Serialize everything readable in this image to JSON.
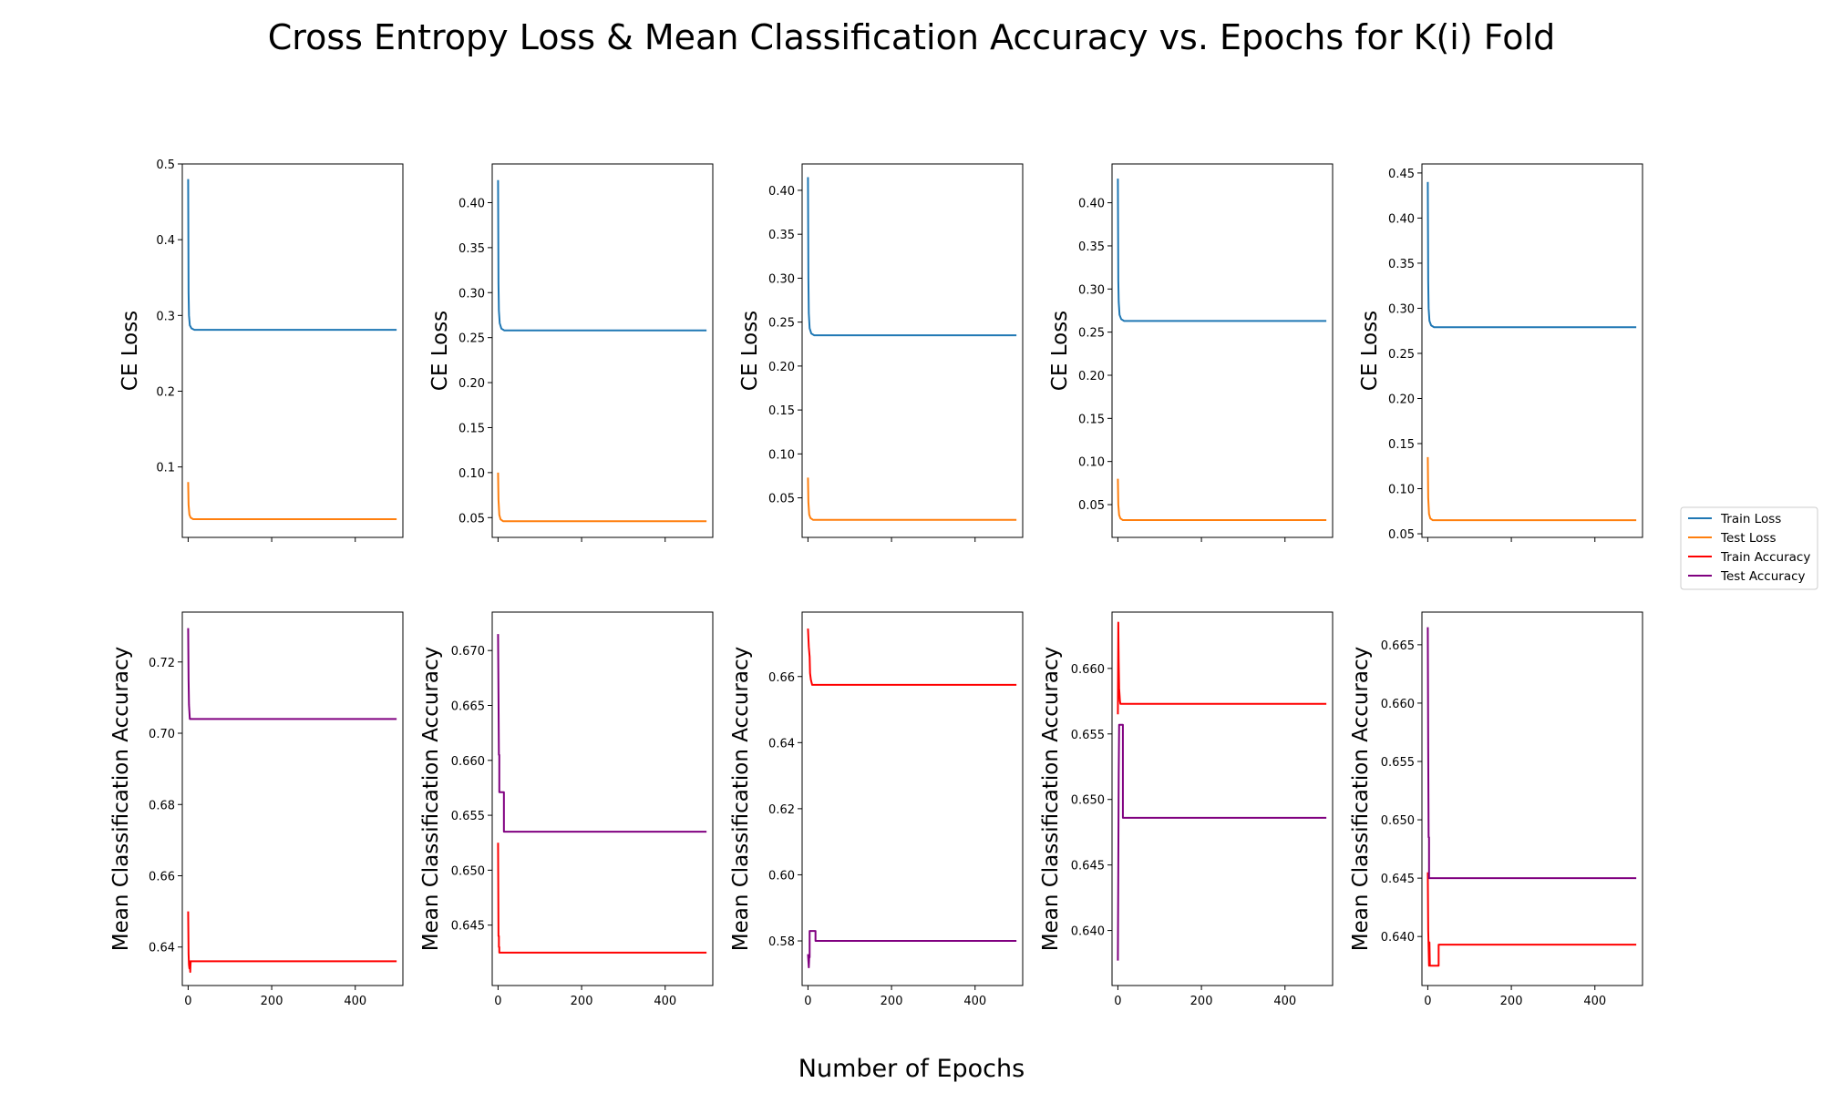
{
  "figure": {
    "title": "Cross Entropy Loss & Mean Classification Accuracy vs. Epochs for K(i) Fold",
    "xlabel": "Number of Epochs",
    "legend": [
      {
        "label": "Train Loss",
        "color": "#1f77b4"
      },
      {
        "label": "Test Loss",
        "color": "#ff7f0e"
      },
      {
        "label": "Train Accuracy",
        "color": "#ff0000"
      },
      {
        "label": "Test Accuracy",
        "color": "#800080"
      }
    ]
  },
  "chart_data": [
    {
      "type": "line",
      "fold": 1,
      "metric": "loss",
      "ylabel": "CE Loss",
      "xlim": [
        -14,
        514
      ],
      "ylim": [
        0.007,
        0.5
      ],
      "xticks": [
        0,
        200,
        400
      ],
      "yticks": [
        0.1,
        0.2,
        0.3,
        0.4,
        0.5
      ],
      "ytick_labels": [
        "0.1",
        "0.2",
        "0.3",
        "0.4",
        "0.5"
      ],
      "show_xtick_labels": false,
      "series": [
        {
          "name": "Train Loss",
          "color": "#1f77b4",
          "points": [
            [
              0,
              0.48
            ],
            [
              1,
              0.33
            ],
            [
              2,
              0.3
            ],
            [
              4,
              0.287
            ],
            [
              8,
              0.283
            ],
            [
              15,
              0.281
            ],
            [
              499,
              0.281
            ]
          ]
        },
        {
          "name": "Test Loss",
          "color": "#ff7f0e",
          "points": [
            [
              0,
              0.08
            ],
            [
              1,
              0.05
            ],
            [
              3,
              0.037
            ],
            [
              6,
              0.033
            ],
            [
              12,
              0.031
            ],
            [
              499,
              0.031
            ]
          ]
        }
      ]
    },
    {
      "type": "line",
      "fold": 2,
      "metric": "loss",
      "ylabel": "CE Loss",
      "xlim": [
        -14,
        514
      ],
      "ylim": [
        0.028,
        0.443
      ],
      "xticks": [
        0,
        200,
        400
      ],
      "yticks": [
        0.05,
        0.1,
        0.15,
        0.2,
        0.25,
        0.3,
        0.35,
        0.4
      ],
      "ytick_labels": [
        "0.05",
        "0.10",
        "0.15",
        "0.20",
        "0.25",
        "0.30",
        "0.35",
        "0.40"
      ],
      "show_xtick_labels": false,
      "series": [
        {
          "name": "Train Loss",
          "color": "#1f77b4",
          "points": [
            [
              0,
              0.425
            ],
            [
              1,
              0.31
            ],
            [
              2,
              0.28
            ],
            [
              4,
              0.266
            ],
            [
              8,
              0.26
            ],
            [
              15,
              0.258
            ],
            [
              499,
              0.258
            ]
          ]
        },
        {
          "name": "Test Loss",
          "color": "#ff7f0e",
          "points": [
            [
              0,
              0.1
            ],
            [
              1,
              0.07
            ],
            [
              3,
              0.053
            ],
            [
              6,
              0.048
            ],
            [
              12,
              0.046
            ],
            [
              499,
              0.046
            ]
          ]
        }
      ]
    },
    {
      "type": "line",
      "fold": 3,
      "metric": "loss",
      "ylabel": "CE Loss",
      "xlim": [
        -14,
        514
      ],
      "ylim": [
        0.005,
        0.43
      ],
      "xticks": [
        0,
        200,
        400
      ],
      "yticks": [
        0.05,
        0.1,
        0.15,
        0.2,
        0.25,
        0.3,
        0.35,
        0.4
      ],
      "ytick_labels": [
        "0.05",
        "0.10",
        "0.15",
        "0.20",
        "0.25",
        "0.30",
        "0.35",
        "0.40"
      ],
      "show_xtick_labels": false,
      "series": [
        {
          "name": "Train Loss",
          "color": "#1f77b4",
          "points": [
            [
              0,
              0.415
            ],
            [
              1,
              0.3
            ],
            [
              2,
              0.26
            ],
            [
              4,
              0.243
            ],
            [
              8,
              0.237
            ],
            [
              15,
              0.235
            ],
            [
              499,
              0.235
            ]
          ]
        },
        {
          "name": "Test Loss",
          "color": "#ff7f0e",
          "points": [
            [
              0,
              0.073
            ],
            [
              1,
              0.045
            ],
            [
              3,
              0.031
            ],
            [
              6,
              0.027
            ],
            [
              12,
              0.025
            ],
            [
              499,
              0.025
            ]
          ]
        }
      ]
    },
    {
      "type": "line",
      "fold": 4,
      "metric": "loss",
      "ylabel": "CE Loss",
      "xlim": [
        -14,
        514
      ],
      "ylim": [
        0.012,
        0.445
      ],
      "xticks": [
        0,
        200,
        400
      ],
      "yticks": [
        0.05,
        0.1,
        0.15,
        0.2,
        0.25,
        0.3,
        0.35,
        0.4
      ],
      "ytick_labels": [
        "0.05",
        "0.10",
        "0.15",
        "0.20",
        "0.25",
        "0.30",
        "0.35",
        "0.40"
      ],
      "show_xtick_labels": false,
      "series": [
        {
          "name": "Train Loss",
          "color": "#1f77b4",
          "points": [
            [
              0,
              0.428
            ],
            [
              1,
              0.31
            ],
            [
              2,
              0.285
            ],
            [
              4,
              0.27
            ],
            [
              8,
              0.265
            ],
            [
              15,
              0.263
            ],
            [
              499,
              0.263
            ]
          ]
        },
        {
          "name": "Test Loss",
          "color": "#ff7f0e",
          "points": [
            [
              0,
              0.08
            ],
            [
              1,
              0.05
            ],
            [
              3,
              0.038
            ],
            [
              6,
              0.034
            ],
            [
              12,
              0.032
            ],
            [
              499,
              0.032
            ]
          ]
        }
      ]
    },
    {
      "type": "line",
      "fold": 5,
      "metric": "loss",
      "ylabel": "CE Loss",
      "xlim": [
        -14,
        514
      ],
      "ylim": [
        0.046,
        0.46
      ],
      "xticks": [
        0,
        200,
        400
      ],
      "yticks": [
        0.05,
        0.1,
        0.15,
        0.2,
        0.25,
        0.3,
        0.35,
        0.4,
        0.45
      ],
      "ytick_labels": [
        "0.05",
        "0.10",
        "0.15",
        "0.20",
        "0.25",
        "0.30",
        "0.35",
        "0.40",
        "0.45"
      ],
      "show_xtick_labels": false,
      "series": [
        {
          "name": "Train Loss",
          "color": "#1f77b4",
          "points": [
            [
              0,
              0.44
            ],
            [
              1,
              0.33
            ],
            [
              2,
              0.3
            ],
            [
              4,
              0.286
            ],
            [
              8,
              0.281
            ],
            [
              15,
              0.279
            ],
            [
              499,
              0.279
            ]
          ]
        },
        {
          "name": "Test Loss",
          "color": "#ff7f0e",
          "points": [
            [
              0,
              0.135
            ],
            [
              1,
              0.09
            ],
            [
              3,
              0.072
            ],
            [
              6,
              0.067
            ],
            [
              12,
              0.065
            ],
            [
              499,
              0.065
            ]
          ]
        }
      ]
    },
    {
      "type": "line",
      "fold": 1,
      "metric": "accuracy",
      "ylabel": "Mean Classification Accuracy",
      "xlim": [
        -14,
        514
      ],
      "ylim": [
        0.6292,
        0.734
      ],
      "xticks": [
        0,
        200,
        400
      ],
      "xtick_labels": [
        "0",
        "200",
        "400"
      ],
      "yticks": [
        0.64,
        0.66,
        0.68,
        0.7,
        0.72
      ],
      "ytick_labels": [
        "0.64",
        "0.66",
        "0.68",
        "0.70",
        "0.72"
      ],
      "show_xtick_labels": true,
      "series": [
        {
          "name": "Train Accuracy",
          "color": "#ff0000",
          "points": [
            [
              0,
              0.65
            ],
            [
              1,
              0.638
            ],
            [
              2,
              0.635
            ],
            [
              3,
              0.634
            ],
            [
              4,
              0.636
            ],
            [
              5,
              0.633
            ],
            [
              6,
              0.636
            ],
            [
              499,
              0.636
            ]
          ]
        },
        {
          "name": "Test Accuracy",
          "color": "#800080",
          "points": [
            [
              0,
              0.7295
            ],
            [
              1,
              0.715
            ],
            [
              2,
              0.708
            ],
            [
              3,
              0.706
            ],
            [
              4,
              0.704
            ],
            [
              499,
              0.704
            ]
          ]
        }
      ]
    },
    {
      "type": "line",
      "fold": 2,
      "metric": "accuracy",
      "ylabel": "Mean Classification Accuracy",
      "xlim": [
        -14,
        514
      ],
      "ylim": [
        0.6395,
        0.6735
      ],
      "xticks": [
        0,
        200,
        400
      ],
      "xtick_labels": [
        "0",
        "200",
        "400"
      ],
      "yticks": [
        0.645,
        0.65,
        0.655,
        0.66,
        0.665,
        0.67
      ],
      "ytick_labels": [
        "0.645",
        "0.650",
        "0.655",
        "0.660",
        "0.665",
        "0.670"
      ],
      "show_xtick_labels": true,
      "series": [
        {
          "name": "Train Accuracy",
          "color": "#ff0000",
          "points": [
            [
              0,
              0.6525
            ],
            [
              1,
              0.644
            ],
            [
              2,
              0.644
            ],
            [
              2,
              0.643
            ],
            [
              3,
              0.643
            ],
            [
              3,
              0.6425
            ],
            [
              499,
              0.6425
            ]
          ]
        },
        {
          "name": "Test Accuracy",
          "color": "#800080",
          "points": [
            [
              0,
              0.6715
            ],
            [
              1,
              0.666
            ],
            [
              2,
              0.6605
            ],
            [
              3,
              0.6605
            ],
            [
              3,
              0.6571
            ],
            [
              14,
              0.6571
            ],
            [
              14,
              0.6535
            ],
            [
              499,
              0.6535
            ]
          ]
        }
      ]
    },
    {
      "type": "line",
      "fold": 3,
      "metric": "accuracy",
      "ylabel": "Mean Classification Accuracy",
      "xlim": [
        -14,
        514
      ],
      "ylim": [
        0.5665,
        0.6795
      ],
      "xticks": [
        0,
        200,
        400
      ],
      "xtick_labels": [
        "0",
        "200",
        "400"
      ],
      "yticks": [
        0.58,
        0.6,
        0.62,
        0.64,
        0.66
      ],
      "ytick_labels": [
        "0.58",
        "0.60",
        "0.62",
        "0.64",
        "0.66"
      ],
      "show_xtick_labels": true,
      "series": [
        {
          "name": "Train Accuracy",
          "color": "#ff0000",
          "points": [
            [
              0,
              0.6745
            ],
            [
              2,
              0.669
            ],
            [
              4,
              0.666
            ],
            [
              5,
              0.661
            ],
            [
              7,
              0.659
            ],
            [
              10,
              0.6575
            ],
            [
              499,
              0.6575
            ]
          ]
        },
        {
          "name": "Test Accuracy",
          "color": "#800080",
          "points": [
            [
              0,
              0.576
            ],
            [
              2,
              0.572
            ],
            [
              3,
              0.575
            ],
            [
              4,
              0.575
            ],
            [
              4,
              0.583
            ],
            [
              18,
              0.583
            ],
            [
              18,
              0.58
            ],
            [
              499,
              0.58
            ]
          ]
        }
      ]
    },
    {
      "type": "line",
      "fold": 4,
      "metric": "accuracy",
      "ylabel": "Mean Classification Accuracy",
      "xlim": [
        -14,
        514
      ],
      "ylim": [
        0.6358,
        0.6643
      ],
      "xticks": [
        0,
        200,
        400
      ],
      "xtick_labels": [
        "0",
        "200",
        "400"
      ],
      "yticks": [
        0.64,
        0.645,
        0.65,
        0.655,
        0.66
      ],
      "ytick_labels": [
        "0.640",
        "0.645",
        "0.650",
        "0.655",
        "0.660"
      ],
      "show_xtick_labels": true,
      "series": [
        {
          "name": "Train Accuracy",
          "color": "#ff0000",
          "points": [
            [
              0,
              0.6565
            ],
            [
              1,
              0.6635
            ],
            [
              2,
              0.6605
            ],
            [
              3,
              0.6585
            ],
            [
              5,
              0.6575
            ],
            [
              6,
              0.6573
            ],
            [
              499,
              0.6573
            ]
          ]
        },
        {
          "name": "Test Accuracy",
          "color": "#800080",
          "points": [
            [
              0,
              0.6377
            ],
            [
              2,
              0.652
            ],
            [
              3,
              0.6557
            ],
            [
              12,
              0.6557
            ],
            [
              12,
              0.6486
            ],
            [
              499,
              0.6486
            ]
          ]
        }
      ]
    },
    {
      "type": "line",
      "fold": 5,
      "metric": "accuracy",
      "ylabel": "Mean Classification Accuracy",
      "xlim": [
        -14,
        514
      ],
      "ylim": [
        0.6358,
        0.6678
      ],
      "xticks": [
        0,
        200,
        400
      ],
      "xtick_labels": [
        "0",
        "200",
        "400"
      ],
      "yticks": [
        0.64,
        0.645,
        0.65,
        0.655,
        0.66,
        0.665
      ],
      "ytick_labels": [
        "0.640",
        "0.645",
        "0.650",
        "0.655",
        "0.660",
        "0.665"
      ],
      "show_xtick_labels": true,
      "series": [
        {
          "name": "Train Accuracy",
          "color": "#ff0000",
          "points": [
            [
              0,
              0.6455
            ],
            [
              1,
              0.6405
            ],
            [
              3,
              0.6375
            ],
            [
              4,
              0.6395
            ],
            [
              5,
              0.6375
            ],
            [
              26,
              0.6375
            ],
            [
              26,
              0.6393
            ],
            [
              499,
              0.6393
            ]
          ]
        },
        {
          "name": "Test Accuracy",
          "color": "#800080",
          "points": [
            [
              0,
              0.6665
            ],
            [
              1,
              0.656
            ],
            [
              2,
              0.6485
            ],
            [
              3,
              0.6485
            ],
            [
              3,
              0.645
            ],
            [
              499,
              0.645
            ]
          ]
        }
      ]
    }
  ]
}
